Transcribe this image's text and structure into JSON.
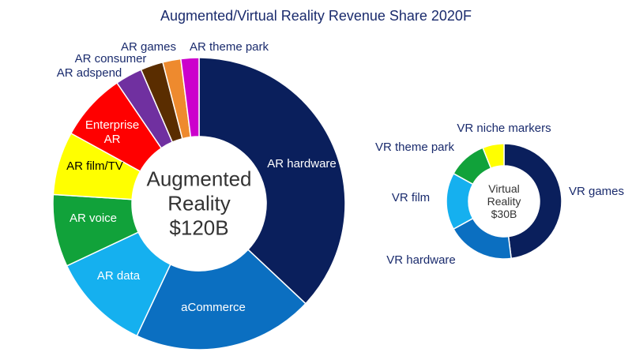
{
  "title": "Augmented/Virtual Reality Revenue Share 2020F",
  "chart_data": [
    {
      "type": "donut",
      "center_label": [
        "Augmented",
        "Reality",
        "$120B"
      ],
      "categories": [
        "AR hardware",
        "aCommerce",
        "AR data",
        "AR voice",
        "AR film/TV",
        "Enterprise AR",
        "AR adspend",
        "AR consumer",
        "AR games",
        "AR theme park"
      ],
      "values": [
        37,
        20,
        11,
        8,
        7,
        7.5,
        3,
        2.5,
        2,
        2
      ],
      "colors": [
        "#0a1f5c",
        "#0b6fc1",
        "#15b0ef",
        "#11a23a",
        "#ffff00",
        "#ff0000",
        "#7030a0",
        "#5a2d00",
        "#ee8a2e",
        "#cc00cc"
      ]
    },
    {
      "type": "donut",
      "center_label": [
        "Virtual",
        "Reality",
        "$30B"
      ],
      "categories": [
        "VR games",
        "VR hardware",
        "VR film",
        "VR theme park",
        "VR niche markers"
      ],
      "values": [
        48,
        19,
        16,
        11,
        6
      ],
      "colors": [
        "#0a1f5c",
        "#0b6fc1",
        "#15b0ef",
        "#11a23a",
        "#ffff00"
      ]
    }
  ]
}
